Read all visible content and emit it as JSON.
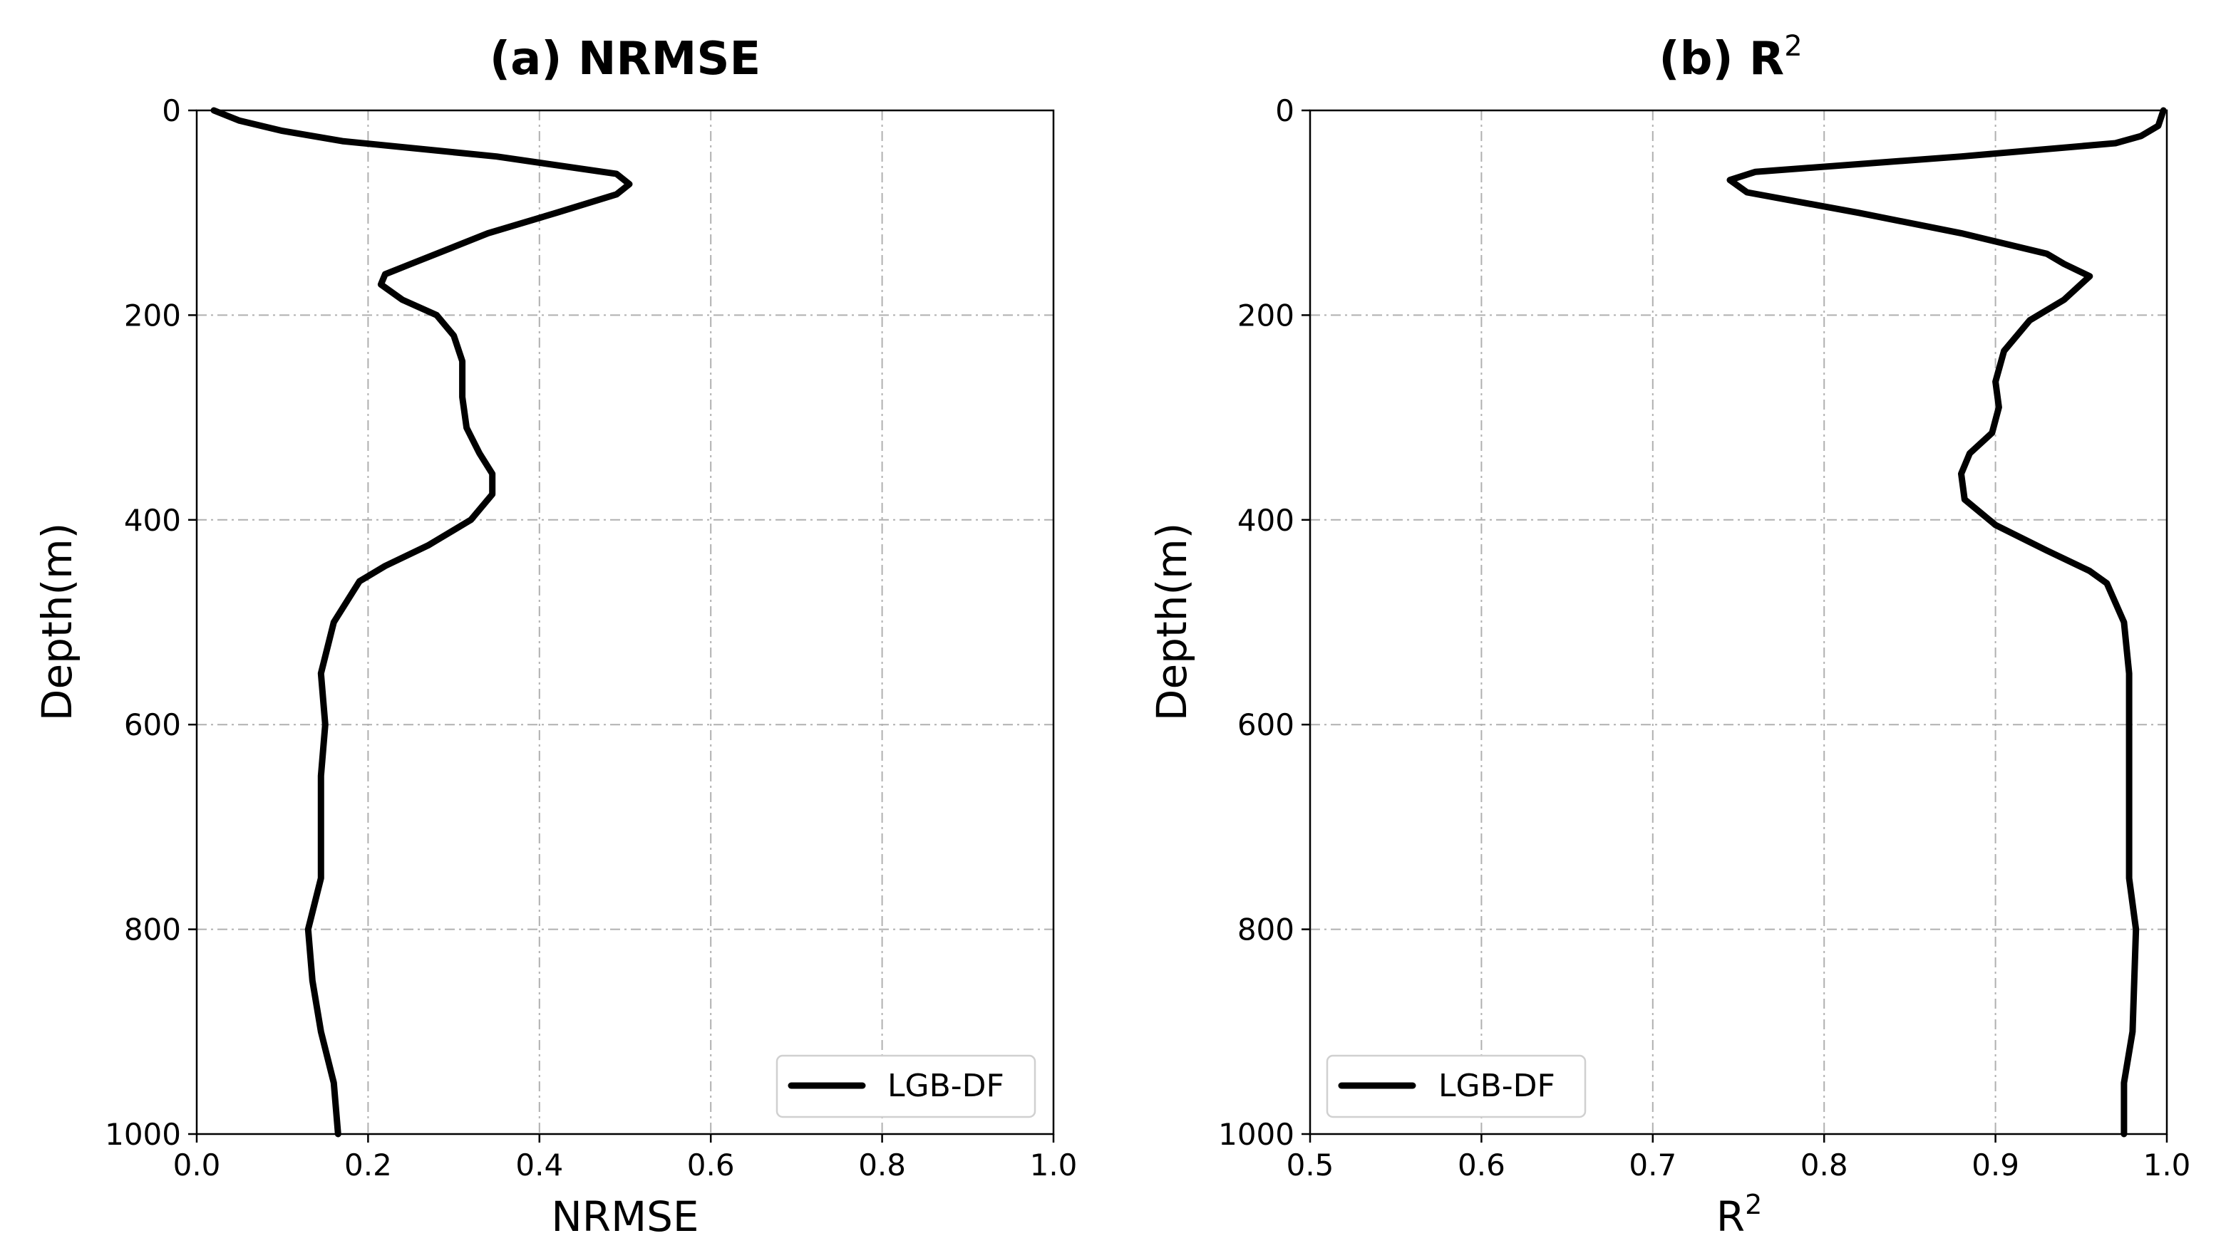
{
  "chart_data": [
    {
      "type": "line",
      "title": "(a) NRMSE",
      "xlabel": "NRMSE",
      "ylabel": "Depth(m)",
      "xlim": [
        0.0,
        1.0
      ],
      "ylim": [
        0,
        1000
      ],
      "y_inverted": true,
      "xticks": [
        "0.0",
        "0.2",
        "0.4",
        "0.6",
        "0.8",
        "1.0"
      ],
      "yticks": [
        "0",
        "200",
        "400",
        "600",
        "800",
        "1000"
      ],
      "grid": true,
      "legend_position": "lower-right",
      "series": [
        {
          "name": "LGB-DF",
          "color": "#000000",
          "points": [
            {
              "x": 0.02,
              "y": 0
            },
            {
              "x": 0.05,
              "y": 10
            },
            {
              "x": 0.1,
              "y": 20
            },
            {
              "x": 0.17,
              "y": 30
            },
            {
              "x": 0.35,
              "y": 45
            },
            {
              "x": 0.49,
              "y": 62
            },
            {
              "x": 0.505,
              "y": 72
            },
            {
              "x": 0.49,
              "y": 82
            },
            {
              "x": 0.42,
              "y": 100
            },
            {
              "x": 0.34,
              "y": 120
            },
            {
              "x": 0.28,
              "y": 140
            },
            {
              "x": 0.25,
              "y": 150
            },
            {
              "x": 0.22,
              "y": 160
            },
            {
              "x": 0.215,
              "y": 170
            },
            {
              "x": 0.24,
              "y": 185
            },
            {
              "x": 0.28,
              "y": 200
            },
            {
              "x": 0.3,
              "y": 220
            },
            {
              "x": 0.31,
              "y": 245
            },
            {
              "x": 0.31,
              "y": 280
            },
            {
              "x": 0.315,
              "y": 310
            },
            {
              "x": 0.33,
              "y": 335
            },
            {
              "x": 0.345,
              "y": 355
            },
            {
              "x": 0.345,
              "y": 375
            },
            {
              "x": 0.32,
              "y": 400
            },
            {
              "x": 0.27,
              "y": 425
            },
            {
              "x": 0.22,
              "y": 445
            },
            {
              "x": 0.19,
              "y": 460
            },
            {
              "x": 0.16,
              "y": 500
            },
            {
              "x": 0.145,
              "y": 550
            },
            {
              "x": 0.15,
              "y": 600
            },
            {
              "x": 0.145,
              "y": 650
            },
            {
              "x": 0.145,
              "y": 750
            },
            {
              "x": 0.13,
              "y": 800
            },
            {
              "x": 0.135,
              "y": 850
            },
            {
              "x": 0.145,
              "y": 900
            },
            {
              "x": 0.16,
              "y": 950
            },
            {
              "x": 0.165,
              "y": 1000
            }
          ]
        }
      ]
    },
    {
      "type": "line",
      "title": "(b) R",
      "title_sup": "2",
      "xlabel": "R",
      "xlabel_sup": "2",
      "ylabel": "Depth(m)",
      "xlim": [
        0.5,
        1.0
      ],
      "ylim": [
        0,
        1000
      ],
      "y_inverted": true,
      "xticks": [
        "0.5",
        "0.6",
        "0.7",
        "0.8",
        "0.9",
        "1.0"
      ],
      "yticks": [
        "0",
        "200",
        "400",
        "600",
        "800",
        "1000"
      ],
      "grid": true,
      "legend_position": "lower-left",
      "series": [
        {
          "name": "LGB-DF",
          "color": "#000000",
          "points": [
            {
              "x": 0.998,
              "y": 0
            },
            {
              "x": 0.995,
              "y": 15
            },
            {
              "x": 0.985,
              "y": 25
            },
            {
              "x": 0.97,
              "y": 32
            },
            {
              "x": 0.88,
              "y": 45
            },
            {
              "x": 0.76,
              "y": 60
            },
            {
              "x": 0.745,
              "y": 68
            },
            {
              "x": 0.755,
              "y": 80
            },
            {
              "x": 0.82,
              "y": 100
            },
            {
              "x": 0.88,
              "y": 120
            },
            {
              "x": 0.93,
              "y": 140
            },
            {
              "x": 0.94,
              "y": 150
            },
            {
              "x": 0.955,
              "y": 162
            },
            {
              "x": 0.94,
              "y": 185
            },
            {
              "x": 0.92,
              "y": 205
            },
            {
              "x": 0.905,
              "y": 235
            },
            {
              "x": 0.9,
              "y": 265
            },
            {
              "x": 0.902,
              "y": 290
            },
            {
              "x": 0.898,
              "y": 315
            },
            {
              "x": 0.885,
              "y": 335
            },
            {
              "x": 0.88,
              "y": 355
            },
            {
              "x": 0.882,
              "y": 380
            },
            {
              "x": 0.9,
              "y": 405
            },
            {
              "x": 0.93,
              "y": 430
            },
            {
              "x": 0.955,
              "y": 450
            },
            {
              "x": 0.965,
              "y": 462
            },
            {
              "x": 0.975,
              "y": 500
            },
            {
              "x": 0.978,
              "y": 550
            },
            {
              "x": 0.978,
              "y": 650
            },
            {
              "x": 0.978,
              "y": 750
            },
            {
              "x": 0.982,
              "y": 800
            },
            {
              "x": 0.98,
              "y": 900
            },
            {
              "x": 0.975,
              "y": 950
            },
            {
              "x": 0.975,
              "y": 1000
            }
          ]
        }
      ]
    }
  ]
}
